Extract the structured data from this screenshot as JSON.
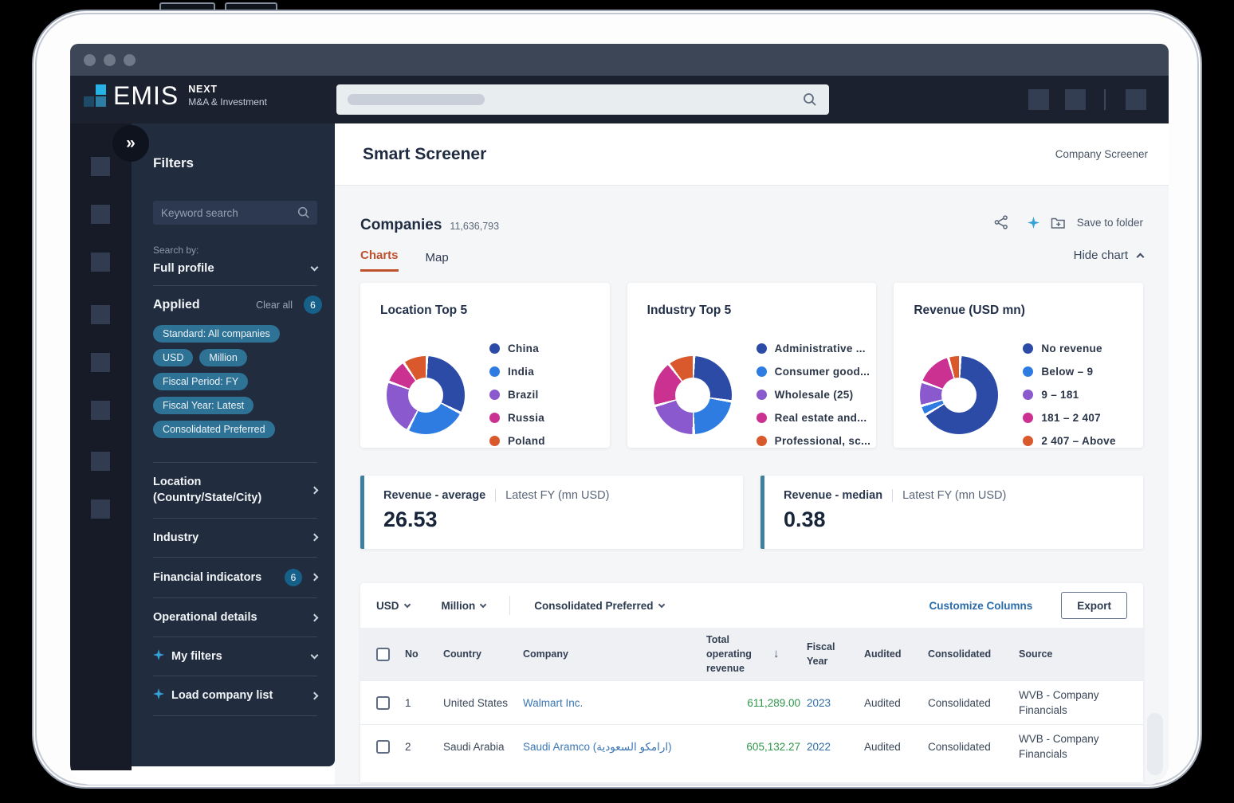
{
  "header": {
    "logo": {
      "brand": "EMIS",
      "product": "NEXT",
      "tagline": "M&A & Investment"
    }
  },
  "sidebar": {
    "collapse_icon": "»",
    "title": "Filters",
    "keyword_placeholder": "Keyword search",
    "search_by_label": "Search by:",
    "search_by_value": "Full profile",
    "applied": {
      "title": "Applied",
      "clear_all": "Clear all",
      "count": "6",
      "chips": [
        "Standard: All companies",
        "USD",
        "Million",
        "Fiscal Period: FY",
        "Fiscal Year: Latest",
        "Consolidated Preferred"
      ]
    },
    "sections": [
      {
        "label": "Location (Country/State/City)",
        "chevron": "right"
      },
      {
        "label": "Industry",
        "chevron": "right"
      },
      {
        "label": "Financial indicators",
        "badge": "6",
        "chevron": "right"
      },
      {
        "label": "Operational details",
        "chevron": "right"
      },
      {
        "label": "My filters",
        "sparkle": true,
        "chevron": "down"
      },
      {
        "label": "Load company list",
        "sparkle": true,
        "chevron": "right"
      }
    ]
  },
  "main": {
    "page_title": "Smart Screener",
    "nav_link": "Company Screener",
    "companies_title": "Companies",
    "companies_count": "11,636,793",
    "save_to_folder": "Save to folder",
    "tabs": [
      {
        "label": "Charts",
        "active": true
      },
      {
        "label": "Map",
        "active": false
      }
    ],
    "hide_chart": "Hide chart"
  },
  "chart_data": [
    {
      "type": "pie",
      "title": "Location Top 5",
      "labels": [
        "China",
        "India",
        "Brazil",
        "Russia",
        "Poland"
      ],
      "values": [
        32,
        25,
        23,
        10,
        10
      ],
      "legend_position": "right"
    },
    {
      "type": "pie",
      "title": "Industry Top 5",
      "labels": [
        "Administrative ...",
        "Consumer good...",
        "Wholesale (25)",
        "Real estate and...",
        "Professional, sc..."
      ],
      "values": [
        27,
        22,
        21,
        19,
        11
      ],
      "legend_position": "right"
    },
    {
      "type": "pie",
      "title": "Revenue (USD mn)",
      "labels": [
        "No revenue",
        "Below – 9",
        "9 – 181",
        "181 – 2 407",
        "2 407 – Above"
      ],
      "values": [
        66,
        4,
        10,
        15,
        5
      ],
      "legend_position": "right"
    }
  ],
  "stats": [
    {
      "label": "Revenue - average",
      "sublabel": "Latest FY (mn USD)",
      "value": "26.53"
    },
    {
      "label": "Revenue - median",
      "sublabel": "Latest FY (mn USD)",
      "value": "0.38"
    }
  ],
  "table": {
    "currency": "USD",
    "unit": "Million",
    "statement": "Consolidated Preferred",
    "customize_columns": "Customize Columns",
    "export_label": "Export",
    "columns": [
      "No",
      "Country",
      "Company",
      "Total operating revenue",
      "Fiscal Year",
      "Audited",
      "Consolidated",
      "Source"
    ],
    "sorted_by": "Total operating revenue",
    "sort_direction": "desc",
    "rows": [
      {
        "no": "1",
        "country": "United States",
        "company": "Walmart Inc.",
        "revenue": "611,289.00",
        "fiscal_year": "2023",
        "audited": "Audited",
        "consolidated": "Consolidated",
        "source": "WVB - Company Financials"
      },
      {
        "no": "2",
        "country": "Saudi Arabia",
        "company": "Saudi Aramco (ارامكو السعودية)",
        "revenue": "605,132.27",
        "fiscal_year": "2022",
        "audited": "Audited",
        "consolidated": "Consolidated",
        "source": "WVB - Company Financials"
      }
    ]
  },
  "colors": {
    "chip": "#2e7295",
    "active_tab": "#c0512e",
    "link": "#3b76b4",
    "positive": "#2e9549",
    "sparkle": "#35a3d8",
    "stat_accent": "#3f80a1",
    "pie": [
      "#2b4ba6",
      "#2e7ce2",
      "#8a59ce",
      "#cb3191",
      "#d9582c"
    ]
  }
}
